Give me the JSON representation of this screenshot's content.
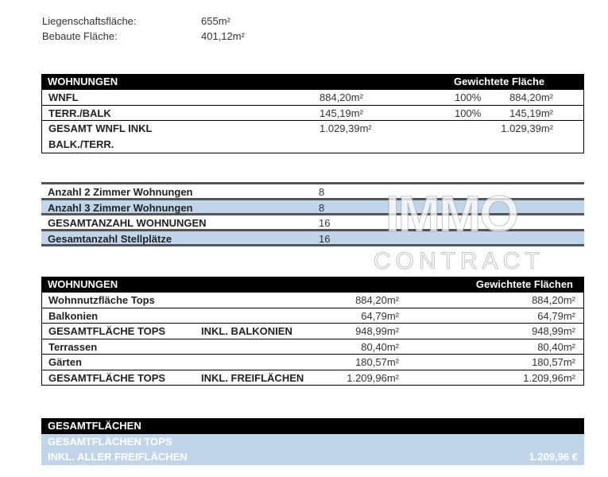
{
  "site": {
    "items": [
      {
        "label": "Liegenschaftsfläche:",
        "value": "655m²"
      },
      {
        "label": "Bebaute Fläche:",
        "value": "401,12m²"
      }
    ]
  },
  "table1": {
    "header": "WOHNUNGEN",
    "header_right": "Gewichtete Fläche",
    "rows": [
      {
        "label": "WNFL",
        "value": "884,20m²",
        "pct": "100%",
        "weighted": "884,20m²"
      },
      {
        "label": "TERR./BALK",
        "value": "145,19m²",
        "pct": "100%",
        "weighted": "145,19m²"
      },
      {
        "label": "GESAMT WNFL INKL",
        "label2": "BALK./TERR.",
        "value": "1.029,39m²",
        "pct": "",
        "weighted": "1.029,39m²"
      }
    ]
  },
  "table2": {
    "rows": [
      {
        "label": "Anzahl 2 Zimmer Wohnungen",
        "value": "8"
      },
      {
        "label": "Anzahl 3 Zimmer Wohnungen",
        "value": "8"
      },
      {
        "label": "GESAMTANZAHL WOHNUNGEN",
        "value": "16"
      },
      {
        "label": "Gesamtanzahl Stellplätze",
        "value": "16"
      }
    ]
  },
  "table3": {
    "header": "WOHNUNGEN",
    "header_right": "Gewichtete Flächen",
    "rows": [
      {
        "label": "Wohnnutzfläche Tops",
        "mid": "",
        "value": "884,20m²",
        "weighted": "884,20m²"
      },
      {
        "label": "Balkonien",
        "mid": "",
        "value": "64,79m²",
        "weighted": "64,79m²"
      },
      {
        "label": "GESAMTFLÄCHE TOPS",
        "mid": "INKL. BALKONIEN",
        "value": "948,99m²",
        "weighted": "948,99m²"
      },
      {
        "label": "Terrassen",
        "mid": "",
        "value": "80,40m²",
        "weighted": "80,40m²"
      },
      {
        "label": "Gärten",
        "mid": "",
        "value": "180,57m²",
        "weighted": "180,57m²"
      },
      {
        "label": "GESAMTFLÄCHE TOPS",
        "mid": "INKL. FREIFLÄCHEN",
        "value": "1.209,96m²",
        "weighted": "1.209,96m²"
      }
    ]
  },
  "table4": {
    "header": "GESAMTFLÄCHEN",
    "line1": "GESAMTFLÄCHEN TOPS",
    "line2": "INKL. ALLER FREIFLÄCHEN",
    "value": "1.209,96 €"
  },
  "watermark": {
    "line1": "IMMO",
    "line2": "CONTRACT"
  },
  "colors": {
    "header_bg": "#000000",
    "row_blue": "#c0d4ea"
  }
}
